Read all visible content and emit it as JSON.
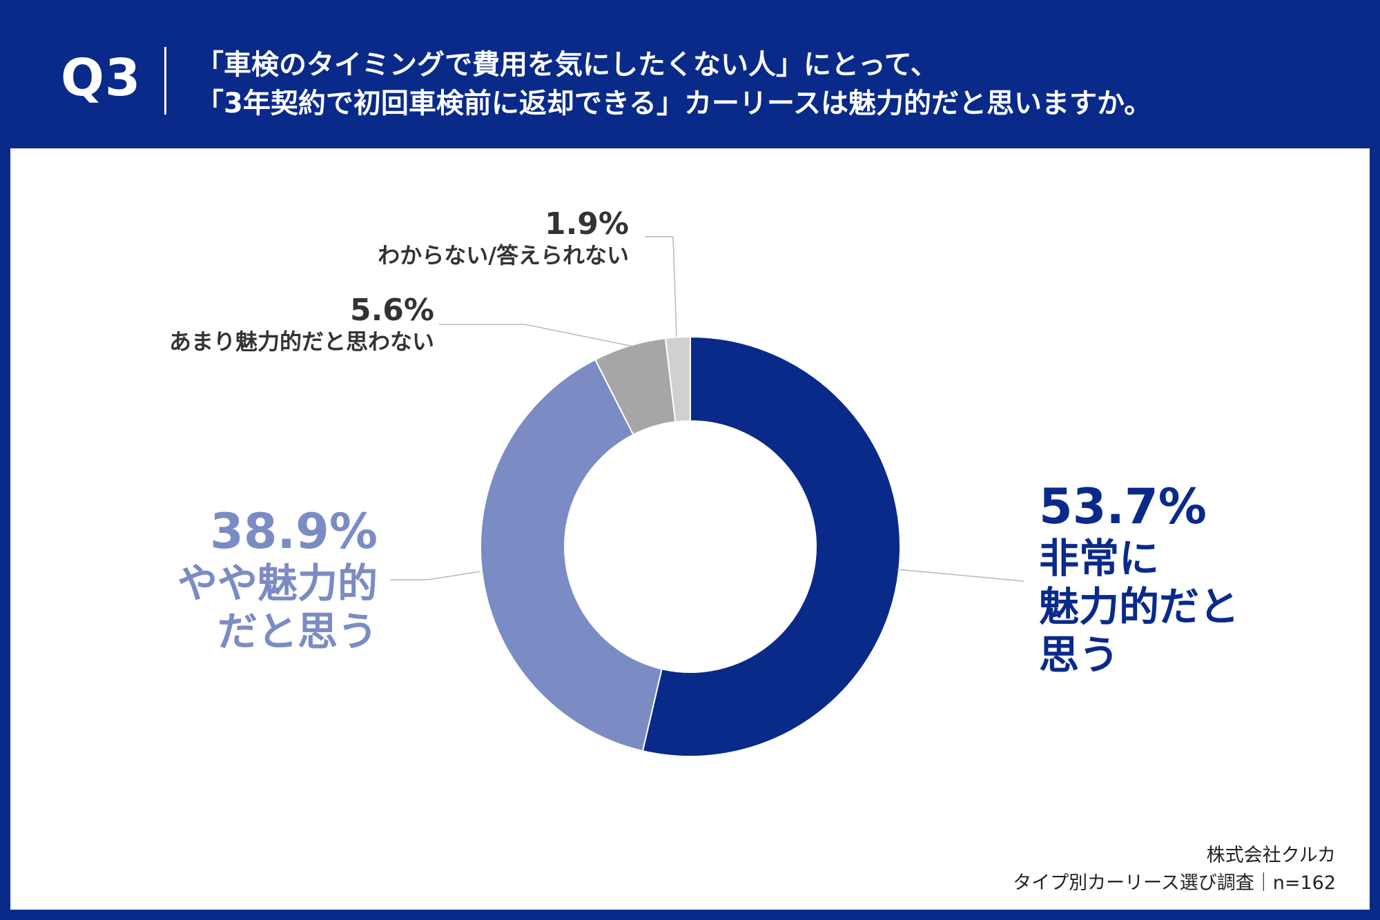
{
  "header": {
    "qnum": "Q3",
    "question_line1": "「車検のタイミングで費用を気にしたくない人」にとって、",
    "question_line2": "「3年契約で初回車検前に返却できる」カーリースは魅力的だと思いますか。"
  },
  "chart_data": {
    "type": "pie",
    "donut": true,
    "slices": [
      {
        "label_lines": [
          "非常に",
          "魅力的だと",
          "思う"
        ],
        "percent_text": "53.7%",
        "value": 53.7,
        "color": "#0a2a8a"
      },
      {
        "label_lines": [
          "やや魅力的",
          "だと思う"
        ],
        "percent_text": "38.9%",
        "value": 38.9,
        "color": "#7b8bc4"
      },
      {
        "label_lines": [
          "あまり魅力的だと思わない"
        ],
        "percent_text": "5.6%",
        "value": 5.6,
        "color": "#a6a6a6"
      },
      {
        "label_lines": [
          "わからない/答えられない"
        ],
        "percent_text": "1.9%",
        "value": 1.9,
        "color": "#d0d0d0"
      }
    ],
    "start": "12 o'clock",
    "direction": "clockwise"
  },
  "footer": {
    "company": "株式会社クルカ",
    "survey": "タイプ別カーリース選び調査｜n=162"
  }
}
